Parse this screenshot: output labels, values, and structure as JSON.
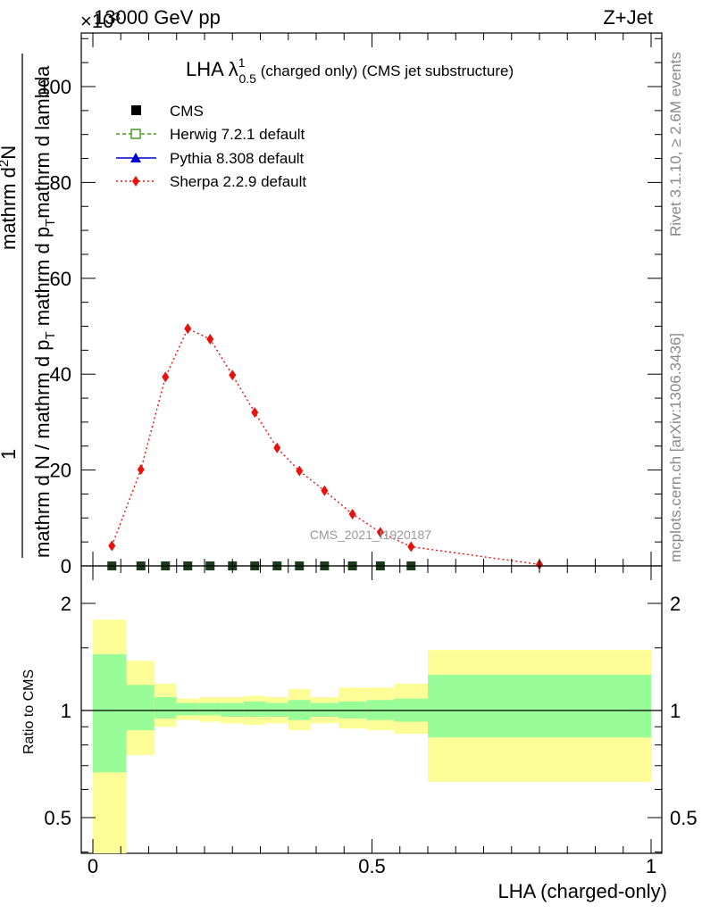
{
  "header": {
    "energy_label": "13000 GeV pp",
    "process_label": "Z+Jet",
    "multiplier_label": "×10^3"
  },
  "side_labels": {
    "rivet": "Rivet 3.1.10, ≥ 2.6M events",
    "mcplots": "mcplots.cern.ch [arXiv:1306.3436]"
  },
  "plot_title": {
    "main": "LHA λ",
    "sup": "1",
    "sub": "0.5",
    "rest": " (charged only) (CMS jet substructure)"
  },
  "watermark": "CMS_2021_I1920187",
  "y_axis": {
    "top_numerator": "1",
    "top_den_a": "mathrm d N / mathrm d p",
    "top_den_sub": "T",
    "top_den_b": " mathrm d p",
    "top_den_sub2": "T",
    "top_den_c": "mathrm d lambda",
    "top_num2": "mathrm d",
    "top_num2_sup": "2",
    "top_num2_b": "N",
    "ratio_label": "Ratio to CMS"
  },
  "x_axis": {
    "label": "LHA (charged-only)",
    "ticks": [
      "0",
      "0.5",
      "1"
    ]
  },
  "legend": [
    {
      "label": "CMS",
      "color": "#000000",
      "marker": "square"
    },
    {
      "label": "Herwig 7.2.1 default",
      "color": "#4a9a1e",
      "marker": "open-square",
      "dash": "4,3"
    },
    {
      "label": "Pythia 8.308 default",
      "color": "#0000cc",
      "marker": "triangle"
    },
    {
      "label": "Sherpa 2.2.9 default",
      "color": "#e8120c",
      "marker": "diamond",
      "dash": "2,3"
    }
  ],
  "chart_data": {
    "type": "line",
    "xlabel": "LHA (charged-only)",
    "xlim": [
      0,
      1
    ],
    "main": {
      "ylim": [
        0,
        112
      ],
      "yticks": [
        "0",
        "20",
        "40",
        "60",
        "80",
        "100"
      ],
      "series": [
        {
          "name": "Sherpa 2.2.9 default",
          "x": [
            0.034,
            0.086,
            0.13,
            0.17,
            0.21,
            0.25,
            0.29,
            0.33,
            0.37,
            0.415,
            0.465,
            0.515,
            0.57,
            0.8
          ],
          "y": [
            4.2,
            20.1,
            39.4,
            49.5,
            47.3,
            39.8,
            32.0,
            24.6,
            19.8,
            15.7,
            10.8,
            7.0,
            4.0,
            0.3
          ]
        },
        {
          "name": "CMS",
          "x": [
            0.034,
            0.086,
            0.13,
            0.17,
            0.21,
            0.25,
            0.29,
            0.33,
            0.37,
            0.415,
            0.465,
            0.515,
            0.57
          ],
          "y": [
            0,
            0,
            0,
            0,
            0,
            0,
            0,
            0,
            0,
            0,
            0,
            0,
            0
          ]
        }
      ]
    },
    "ratio": {
      "ylim": [
        0.35,
        2.3
      ],
      "yticks": [
        "0.5",
        "1",
        "2"
      ],
      "bins": [
        {
          "x0": 0.0,
          "x1": 0.06,
          "green": [
            0.67,
            1.44
          ],
          "yellow": [
            0.35,
            1.8
          ]
        },
        {
          "x0": 0.06,
          "x1": 0.11,
          "green": [
            0.88,
            1.18
          ],
          "yellow": [
            0.75,
            1.38
          ]
        },
        {
          "x0": 0.11,
          "x1": 0.15,
          "green": [
            0.95,
            1.09
          ],
          "yellow": [
            0.9,
            1.19
          ]
        },
        {
          "x0": 0.15,
          "x1": 0.19,
          "green": [
            0.97,
            1.05
          ],
          "yellow": [
            0.94,
            1.08
          ]
        },
        {
          "x0": 0.19,
          "x1": 0.23,
          "green": [
            0.97,
            1.05
          ],
          "yellow": [
            0.93,
            1.09
          ]
        },
        {
          "x0": 0.23,
          "x1": 0.27,
          "green": [
            0.96,
            1.05
          ],
          "yellow": [
            0.92,
            1.09
          ]
        },
        {
          "x0": 0.27,
          "x1": 0.31,
          "green": [
            0.96,
            1.06
          ],
          "yellow": [
            0.91,
            1.1
          ]
        },
        {
          "x0": 0.31,
          "x1": 0.35,
          "green": [
            0.96,
            1.05
          ],
          "yellow": [
            0.92,
            1.09
          ]
        },
        {
          "x0": 0.35,
          "x1": 0.39,
          "green": [
            0.94,
            1.07
          ],
          "yellow": [
            0.88,
            1.15
          ]
        },
        {
          "x0": 0.39,
          "x1": 0.44,
          "green": [
            0.96,
            1.05
          ],
          "yellow": [
            0.92,
            1.09
          ]
        },
        {
          "x0": 0.44,
          "x1": 0.49,
          "green": [
            0.95,
            1.06
          ],
          "yellow": [
            0.89,
            1.16
          ]
        },
        {
          "x0": 0.49,
          "x1": 0.54,
          "green": [
            0.94,
            1.07
          ],
          "yellow": [
            0.88,
            1.16
          ]
        },
        {
          "x0": 0.54,
          "x1": 0.6,
          "green": [
            0.93,
            1.08
          ],
          "yellow": [
            0.86,
            1.19
          ]
        },
        {
          "x0": 0.6,
          "x1": 1.0,
          "green": [
            0.84,
            1.26
          ],
          "yellow": [
            0.63,
            1.48
          ]
        }
      ]
    }
  },
  "colors": {
    "sherpa": "#e8120c",
    "green_band": "#98fd98",
    "yellow_band": "#fdfd98",
    "cms": "#000000"
  }
}
